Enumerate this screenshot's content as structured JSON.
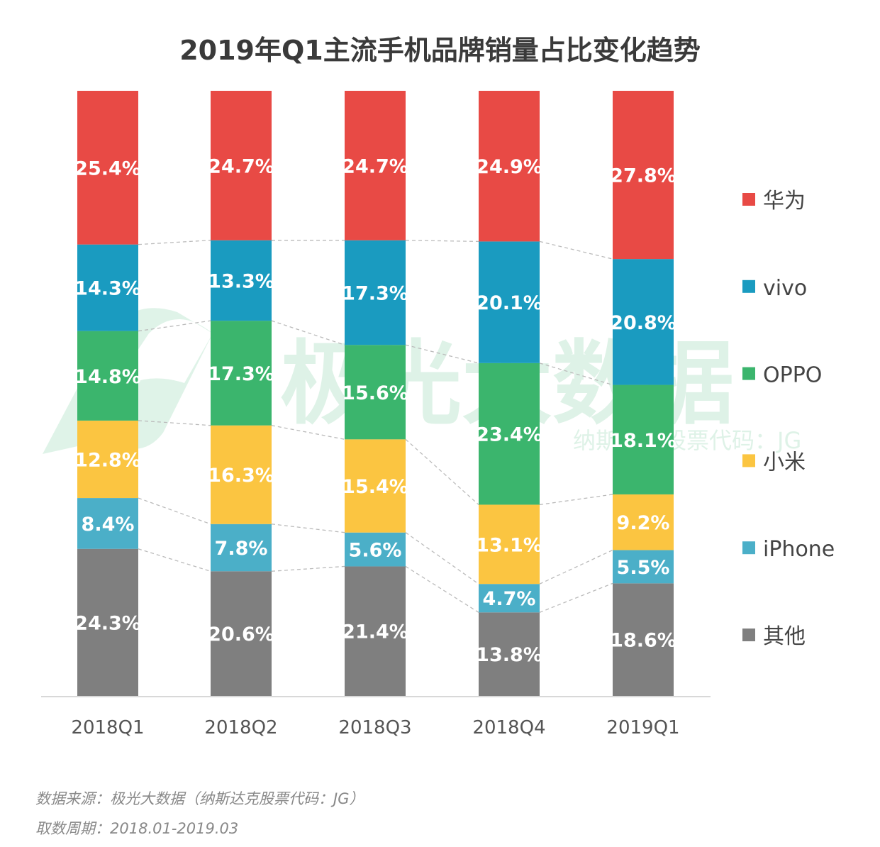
{
  "chart_data": {
    "type": "bar",
    "stacked": true,
    "title": "2019年Q1主流手机品牌销量占比变化趋势",
    "categories": [
      "2018Q1",
      "2018Q2",
      "2018Q3",
      "2018Q4",
      "2019Q1"
    ],
    "unit": "%",
    "ylim": [
      0,
      100
    ],
    "grid": false,
    "legend_position": "right",
    "series": [
      {
        "name": "其他",
        "color": "#7F7F7F",
        "values": [
          24.3,
          20.6,
          21.4,
          13.8,
          18.6
        ]
      },
      {
        "name": "iPhone",
        "color": "#4BAFC8",
        "values": [
          8.4,
          7.8,
          5.6,
          4.7,
          5.5
        ]
      },
      {
        "name": "小米",
        "color": "#FBC541",
        "values": [
          12.8,
          16.3,
          15.4,
          13.1,
          9.2
        ]
      },
      {
        "name": "OPPO",
        "color": "#3BB56D",
        "values": [
          14.8,
          17.3,
          15.6,
          23.4,
          18.1
        ]
      },
      {
        "name": "vivo",
        "color": "#1A9BC0",
        "values": [
          14.3,
          13.3,
          17.3,
          20.1,
          20.8
        ]
      },
      {
        "name": "华为",
        "color": "#E84A45",
        "values": [
          25.4,
          24.7,
          24.7,
          24.9,
          27.8
        ]
      }
    ],
    "legend_order": [
      "华为",
      "vivo",
      "OPPO",
      "小米",
      "iPhone",
      "其他"
    ]
  },
  "watermark": {
    "text": "极光大数据",
    "subtext": "纳斯达克股票代码：JG"
  },
  "footer": {
    "source": "数据来源：极光大数据（纳斯达克股票代码：JG）",
    "period": "取数周期：2018.01-2019.03"
  }
}
